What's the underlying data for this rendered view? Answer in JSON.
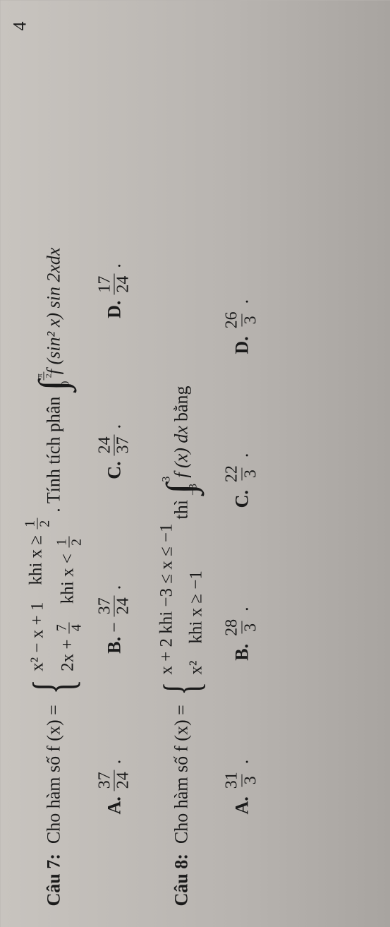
{
  "top_mark": "4",
  "q7": {
    "label": "Câu 7:",
    "intro": "Cho hàm số ",
    "fx_eq": "f (x) =",
    "case1_expr": "x² − x + 1",
    "case1_cond_pre": "khi x ≥ ",
    "case1_cond_num": "1",
    "case1_cond_den": "2",
    "case2_expr_pre": "2x + ",
    "case2_frac_num": "7",
    "case2_frac_den": "4",
    "case2_cond_pre": "khi x < ",
    "case2_cond_num": "1",
    "case2_cond_den": "2",
    "after": ". Tính tích phân ",
    "int_up_num": "π",
    "int_up_den": "2",
    "int_lo": "0",
    "integrand": "f (sin² x) sin 2xdx",
    "choices": {
      "A": {
        "num": "37",
        "den": "24"
      },
      "B": {
        "neg": "−",
        "num": "37",
        "den": "24"
      },
      "C": {
        "num": "24",
        "den": "37"
      },
      "D": {
        "num": "17",
        "den": "24"
      }
    }
  },
  "q8": {
    "label": "Câu 8:",
    "intro": "Cho hàm số ",
    "fx_eq": "f (x) =",
    "case1_expr": "x + 2 khi  −3 ≤ x ≤ −1",
    "case2_expr": "x²",
    "case2_after": "khi x ≥ −1",
    "after_brace": "thì ",
    "int_up": "3",
    "int_lo": "−3",
    "integrand": "f (x) dx",
    "tail": " bằng",
    "choices": {
      "A": {
        "num": "31",
        "den": "3"
      },
      "B": {
        "num": "28",
        "den": "3"
      },
      "C": {
        "num": "22",
        "den": "3"
      },
      "D": {
        "num": "26",
        "den": "3"
      }
    }
  },
  "labels": {
    "A": "A.",
    "B": "B.",
    "C": "C.",
    "D": "D."
  }
}
